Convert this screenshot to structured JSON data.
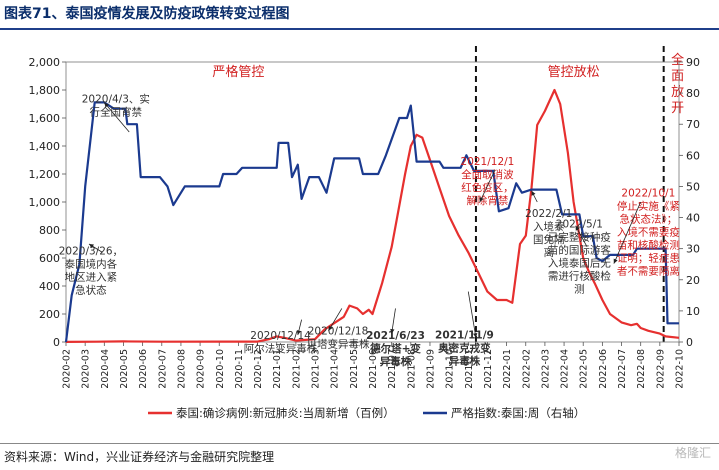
{
  "title": "图表71、泰国疫情发展及防疫政策转变过程图",
  "source": "资料来源：Wind，兴业证券经济与金融研究院整理",
  "watermark": "格隆汇",
  "colors": {
    "red": "#e6302f",
    "blue": "#1b3a8f",
    "annotation_red": "#d11e1e",
    "annotation_gray": "#333333"
  },
  "chart_data": {
    "type": "line",
    "x": [
      "2020-02",
      "2020-03",
      "2020-04",
      "2020-05",
      "2020-06",
      "2020-07",
      "2020-08",
      "2020-09",
      "2020-10",
      "2020-11",
      "2020-12",
      "2021-01",
      "2021-02",
      "2021-03",
      "2021-04",
      "2021-05",
      "2021-06",
      "2021-07",
      "2021-08",
      "2021-09",
      "2021-10",
      "2021-11",
      "2021-12",
      "2022-01",
      "2022-02",
      "2022-03",
      "2022-04",
      "2022-05",
      "2022-06",
      "2022-07",
      "2022-08",
      "2022-09",
      "2022-10"
    ],
    "y_left_ticks": [
      "0",
      "200",
      "400",
      "600",
      "800",
      "1,000",
      "1,200",
      "1,400",
      "1,600",
      "1,800",
      "2,000"
    ],
    "y_right_ticks": [
      "0",
      "10",
      "20",
      "30",
      "40",
      "50",
      "60",
      "70",
      "80",
      "90"
    ],
    "ylim_left": [
      0,
      2000
    ],
    "ylim_right": [
      0,
      90
    ],
    "grid": false,
    "legend_position": "bottom",
    "series": [
      {
        "name": "泰国:确诊病例:新冠肺炎:当周新增（百例）",
        "axis": "left",
        "color": "#e6302f",
        "points": [
          [
            0,
            1
          ],
          [
            1.6,
            2
          ],
          [
            3,
            4
          ],
          [
            5,
            2
          ],
          [
            8,
            3
          ],
          [
            10,
            3
          ],
          [
            10.6,
            20
          ],
          [
            11,
            40
          ],
          [
            11.4,
            30
          ],
          [
            12,
            10
          ],
          [
            12.5,
            15
          ],
          [
            13,
            20
          ],
          [
            13.5,
            90
          ],
          [
            14.5,
            180
          ],
          [
            14.8,
            260
          ],
          [
            15.2,
            240
          ],
          [
            15.5,
            200
          ],
          [
            15.8,
            230
          ],
          [
            16,
            200
          ],
          [
            16.5,
            420
          ],
          [
            17,
            680
          ],
          [
            17.3,
            900
          ],
          [
            17.7,
            1200
          ],
          [
            18,
            1400
          ],
          [
            18.3,
            1480
          ],
          [
            18.6,
            1460
          ],
          [
            19,
            1300
          ],
          [
            19.5,
            1100
          ],
          [
            20,
            900
          ],
          [
            20.5,
            760
          ],
          [
            21,
            640
          ],
          [
            21.5,
            500
          ],
          [
            22,
            360
          ],
          [
            22.5,
            300
          ],
          [
            23,
            300
          ],
          [
            23.3,
            280
          ],
          [
            23.7,
            700
          ],
          [
            24,
            760
          ],
          [
            24.3,
            1100
          ],
          [
            24.6,
            1550
          ],
          [
            25,
            1650
          ],
          [
            25.5,
            1800
          ],
          [
            25.8,
            1700
          ],
          [
            26.2,
            1350
          ],
          [
            26.5,
            1000
          ],
          [
            27,
            600
          ],
          [
            27.3,
            500
          ],
          [
            27.6,
            420
          ],
          [
            28,
            300
          ],
          [
            28.4,
            200
          ],
          [
            29,
            140
          ],
          [
            29.5,
            120
          ],
          [
            29.8,
            130
          ],
          [
            30,
            100
          ],
          [
            30.4,
            80
          ],
          [
            31,
            60
          ],
          [
            31.3,
            40
          ],
          [
            32,
            30
          ]
        ]
      },
      {
        "name": "严格指数:泰国:周（右轴）",
        "axis": "right",
        "color": "#1b3a8f",
        "points": [
          [
            0,
            0
          ],
          [
            0.3,
            15
          ],
          [
            0.7,
            25
          ],
          [
            1,
            50
          ],
          [
            1.5,
            77
          ],
          [
            2,
            77
          ],
          [
            2.5,
            75
          ],
          [
            3.1,
            75
          ],
          [
            3.2,
            70
          ],
          [
            3.7,
            70
          ],
          [
            3.9,
            53
          ],
          [
            4.9,
            53
          ],
          [
            5.3,
            50
          ],
          [
            5.6,
            44
          ],
          [
            6.2,
            50
          ],
          [
            7,
            50
          ],
          [
            8,
            50
          ],
          [
            8.2,
            54
          ],
          [
            8.9,
            54
          ],
          [
            9.2,
            56
          ],
          [
            10,
            56
          ],
          [
            11,
            56
          ],
          [
            11.1,
            64
          ],
          [
            11.6,
            64
          ],
          [
            11.8,
            53
          ],
          [
            12.1,
            57
          ],
          [
            12.3,
            46
          ],
          [
            12.7,
            53
          ],
          [
            13.2,
            53
          ],
          [
            13.6,
            48
          ],
          [
            14,
            59
          ],
          [
            15.3,
            59
          ],
          [
            15.5,
            54
          ],
          [
            16.3,
            54
          ],
          [
            16.7,
            60
          ],
          [
            17.4,
            72
          ],
          [
            17.8,
            72
          ],
          [
            18,
            76
          ],
          [
            18.3,
            58
          ],
          [
            19.5,
            58
          ],
          [
            19.7,
            56
          ],
          [
            20.6,
            56
          ],
          [
            20.9,
            60
          ],
          [
            21.3,
            55
          ],
          [
            22.3,
            55
          ],
          [
            22.6,
            42
          ],
          [
            23.1,
            43
          ],
          [
            23.5,
            51
          ],
          [
            23.8,
            48
          ],
          [
            24.3,
            49
          ],
          [
            25.6,
            49
          ],
          [
            25.9,
            41
          ],
          [
            26.8,
            41
          ],
          [
            27,
            34
          ],
          [
            27.5,
            34
          ],
          [
            27.7,
            27
          ],
          [
            28,
            26
          ],
          [
            28.4,
            28
          ],
          [
            29.6,
            28
          ],
          [
            29.8,
            30
          ],
          [
            31.3,
            30
          ],
          [
            31.4,
            6
          ],
          [
            32,
            6
          ]
        ]
      }
    ],
    "phase_labels": [
      "严格管控",
      "管控放松",
      "全面放开"
    ],
    "annotations": [
      {
        "x": 2.6,
        "y": 1712,
        "text": [
          "2020/4/3、实",
          "行全国宵禁"
        ]
      },
      {
        "x": 1.3,
        "y": 625,
        "text": [
          "2020/3/26，",
          "泰国境内各",
          "地区进入紧",
          "急状态"
        ]
      },
      {
        "x": 11.2,
        "y": 20,
        "text": [
          "2020/12/14",
          "阿尔法变异毒株"
        ]
      },
      {
        "x": 14.2,
        "y": 52,
        "text": [
          "2020/12/18",
          "贝塔变异毒株"
        ]
      },
      {
        "x": 17.2,
        "y": 20,
        "text": [
          "2021/6/23",
          "德尔塔+变",
          "异毒株"
        ],
        "bold": true
      },
      {
        "x": 20.8,
        "y": 25,
        "text": [
          "2021/11/9",
          "奥密克戎变",
          "异毒株"
        ],
        "bold": true
      },
      {
        "x": 22.0,
        "y": 1265,
        "text": [
          "2021/12/1",
          "全面取消波",
          "红色疫区，",
          "解除宵禁"
        ],
        "red": true
      },
      {
        "x": 25.2,
        "y": 892,
        "text": [
          "2022/2/1",
          "入境泰",
          "国免隔",
          "离"
        ]
      },
      {
        "x": 26.8,
        "y": 818,
        "text": [
          "2022/5/1",
          "已完整接种疫",
          "苗的国际游客",
          "入境泰国后无",
          "需进行核酸检",
          "测"
        ]
      },
      {
        "x": 30.4,
        "y": 1040,
        "text": [
          "2022/10/1",
          "停止实施《紧",
          "急状态法》；",
          "入境不需要疫",
          "苗和核酸检测",
          "证明；轻症患",
          "者不需要隔离"
        ],
        "red": true
      }
    ]
  }
}
